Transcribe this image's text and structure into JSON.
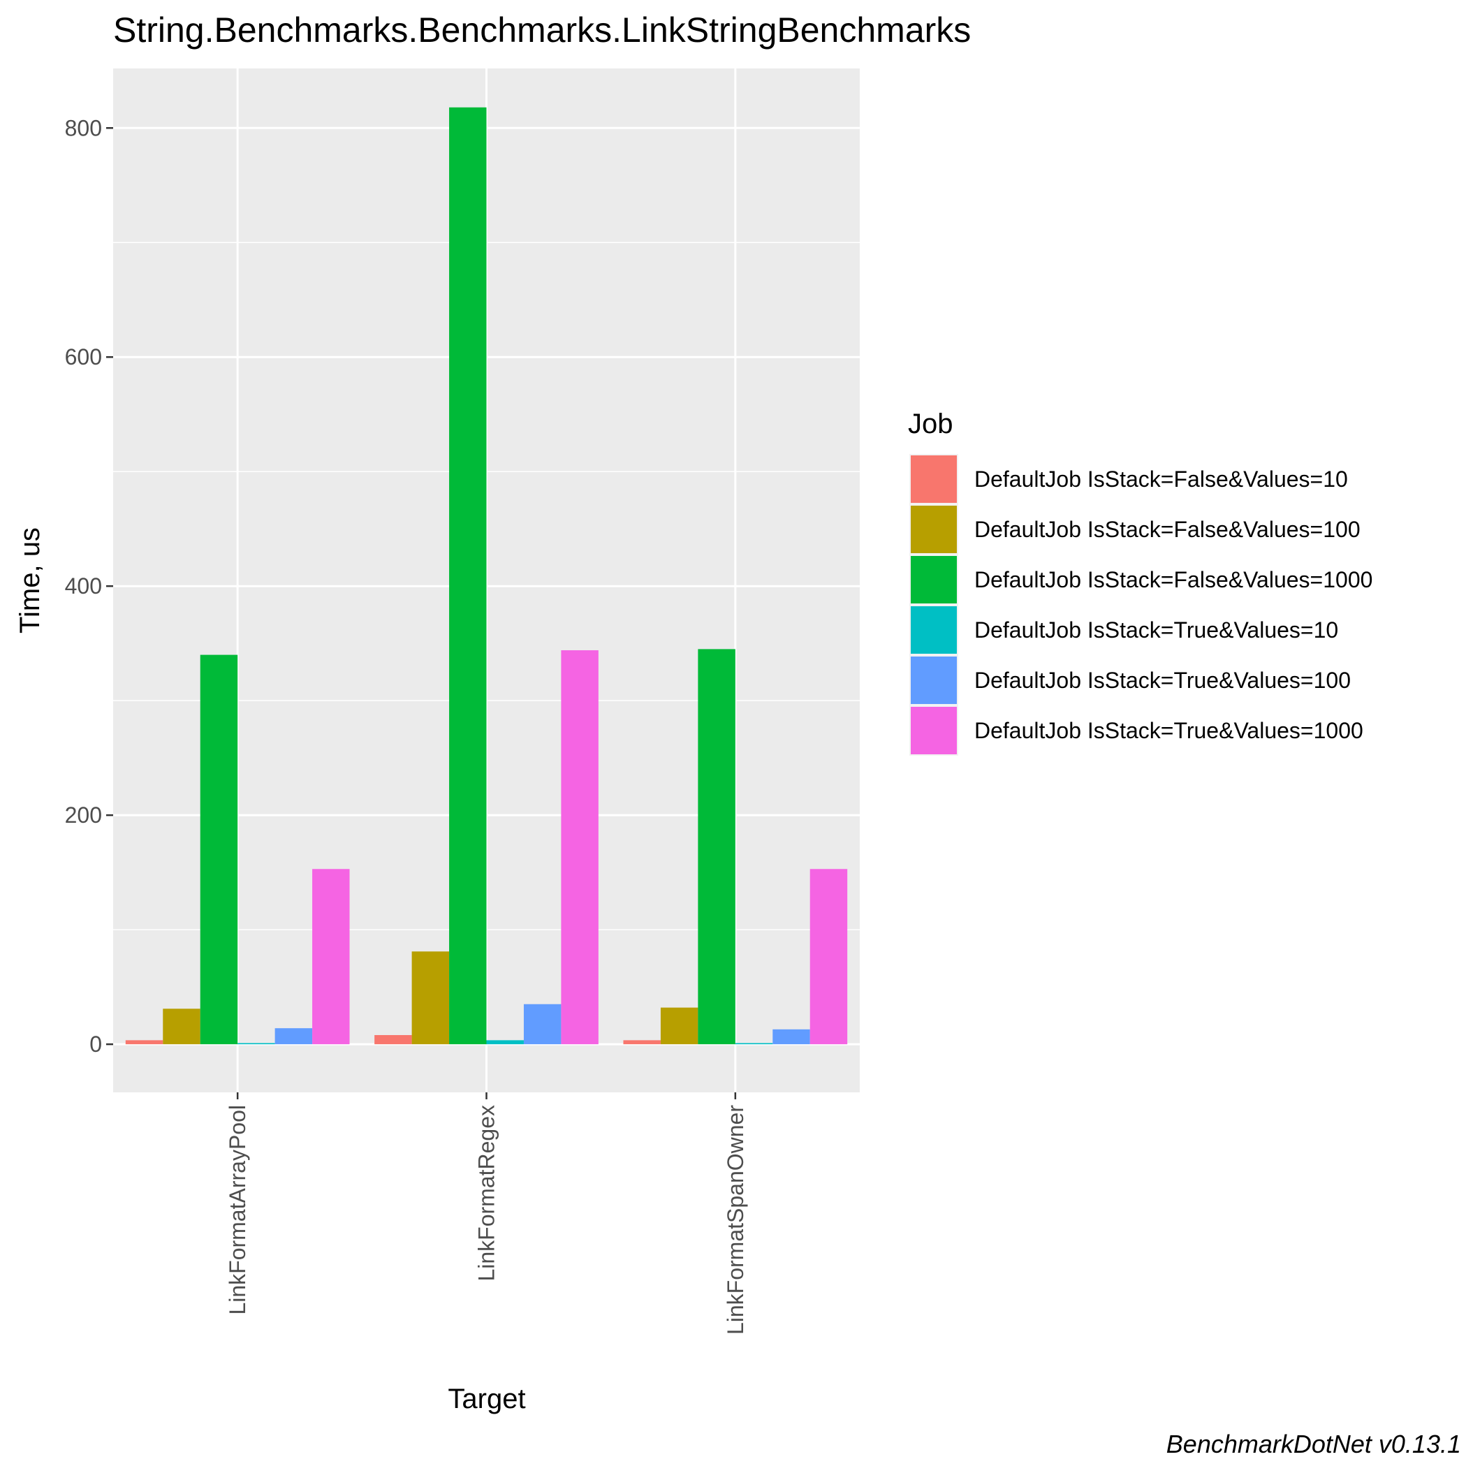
{
  "chart_data": {
    "type": "bar",
    "title": "String.Benchmarks.Benchmarks.LinkStringBenchmarks",
    "xlabel": "Target",
    "ylabel": "Time, us",
    "categories": [
      "LinkFormatArrayPool",
      "LinkFormatRegex",
      "LinkFormatSpanOwner"
    ],
    "ylim": [
      -42,
      852
    ],
    "yticks": [
      0,
      200,
      400,
      600,
      800
    ],
    "grid": true,
    "legend_title": "Job",
    "legend_position": "right",
    "caption": "BenchmarkDotNet v0.13.1",
    "series": [
      {
        "name": "DefaultJob IsStack=False&Values=10",
        "color": "#F8766D",
        "values": [
          3.5,
          8,
          3.5
        ]
      },
      {
        "name": "DefaultJob IsStack=False&Values=100",
        "color": "#B79F00",
        "values": [
          31,
          81,
          32
        ]
      },
      {
        "name": "DefaultJob IsStack=False&Values=1000",
        "color": "#00BA38",
        "values": [
          340,
          818,
          345
        ]
      },
      {
        "name": "DefaultJob IsStack=True&Values=10",
        "color": "#00BFC4",
        "values": [
          1,
          3.5,
          1
        ]
      },
      {
        "name": "DefaultJob IsStack=True&Values=100",
        "color": "#619CFF",
        "values": [
          14,
          35,
          13
        ]
      },
      {
        "name": "DefaultJob IsStack=True&Values=1000",
        "color": "#F564E3",
        "values": [
          153,
          344,
          153
        ]
      }
    ]
  }
}
